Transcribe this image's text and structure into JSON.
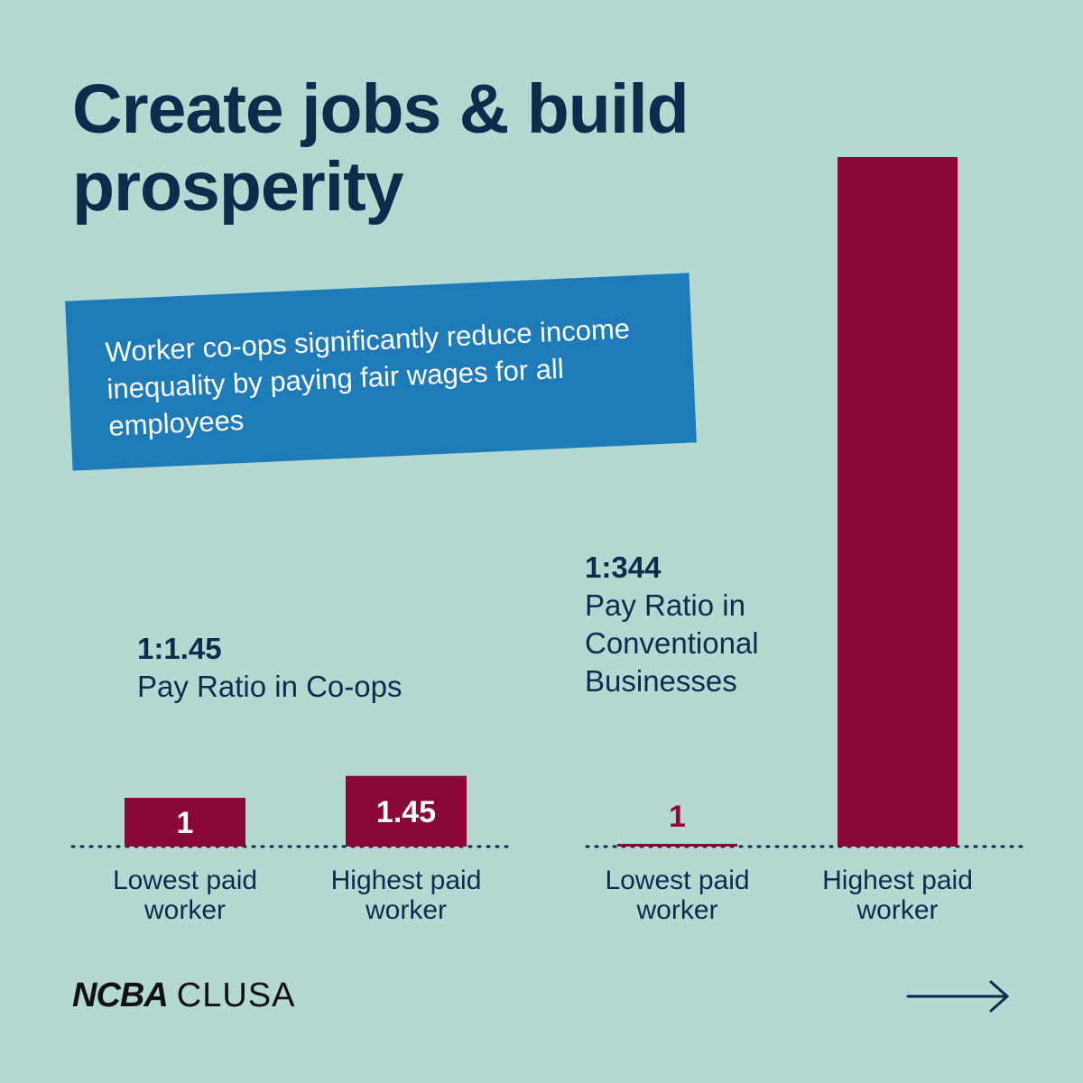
{
  "title": "Create jobs & build prosperity",
  "callout": "Worker co-ops significantly reduce income inequality by paying fair wages for all employees",
  "colors": {
    "background": "#b2d9d2",
    "navy": "#0d2b4b",
    "bar": "#870837",
    "callout": "#1f7bb8"
  },
  "coops": {
    "ratio": "1:1.45",
    "caption": "Pay Ratio in Co-ops"
  },
  "conventional": {
    "ratio": "1:344",
    "caption_lines": [
      "Pay Ratio in",
      "Conventional",
      "Businesses"
    ]
  },
  "chart_data": [
    {
      "type": "bar",
      "categories": [
        [
          "Lowest paid",
          "worker"
        ],
        [
          "Highest paid",
          "worker"
        ]
      ],
      "values": [
        1,
        1.45
      ],
      "data_labels": [
        "1",
        "1.45"
      ],
      "gridlines": false
    },
    {
      "type": "bar",
      "categories": [
        [
          "Lowest paid",
          "worker"
        ],
        [
          "Highest paid",
          "worker"
        ]
      ],
      "values": [
        1,
        344
      ],
      "data_labels": [
        "1",
        ""
      ],
      "gridlines": false
    }
  ],
  "logo": {
    "ncba": "NCBA",
    "clusa": "CLUSA"
  },
  "nav": {
    "next_icon": "arrow-right-icon"
  }
}
